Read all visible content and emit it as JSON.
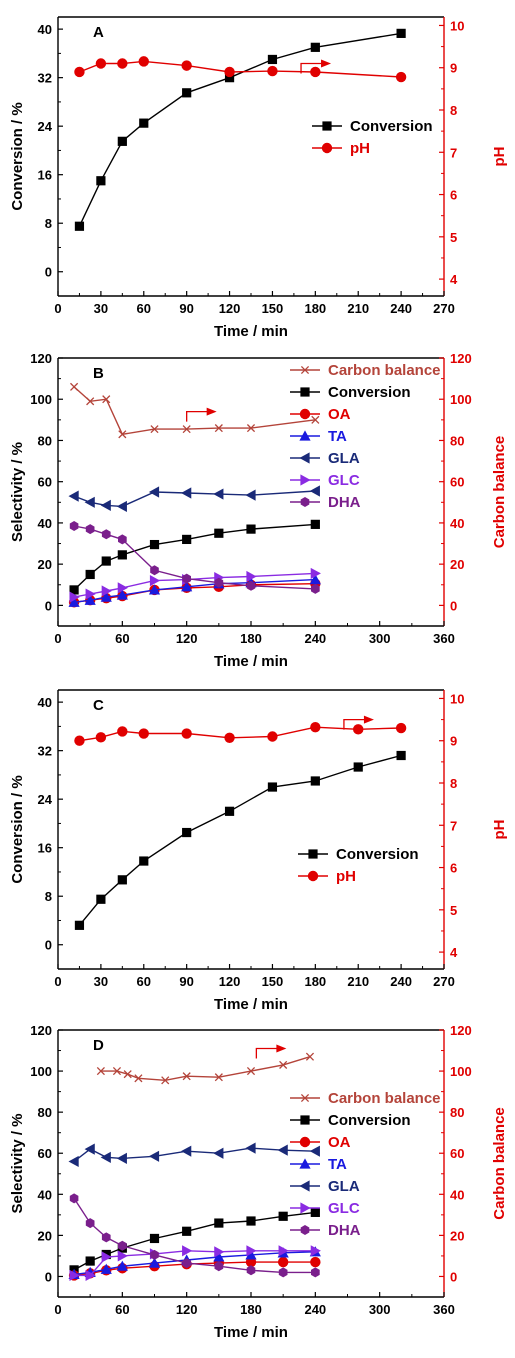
{
  "colors": {
    "black": "#000000",
    "red": "#e00000",
    "blue": "#1a1adf",
    "navy": "#1a2a78",
    "violet": "#8a2be2",
    "purple": "#7a1f8c",
    "brown": "#b4443a"
  },
  "chart_data": [
    {
      "type": "line",
      "panel": "A",
      "xlabel": "Time / min",
      "ylabel": "Conversion / %",
      "y2label": "pH",
      "xlim": [
        0,
        270
      ],
      "ylim": [
        -4,
        42
      ],
      "y2lim": [
        3.6,
        10.2
      ],
      "xticks": [
        0,
        30,
        60,
        90,
        120,
        150,
        180,
        210,
        240,
        270
      ],
      "yticks": [
        0,
        8,
        16,
        24,
        32,
        40
      ],
      "y2ticks": [
        4,
        5,
        6,
        7,
        8,
        9,
        10
      ],
      "legend_position": "center-right",
      "arrow": {
        "x": 170,
        "y2": 9.1
      },
      "series": [
        {
          "name": "Conversion",
          "axis": "left",
          "marker": "square",
          "color": "#000000",
          "x": [
            15,
            30,
            45,
            60,
            90,
            120,
            150,
            180,
            240
          ],
          "y": [
            7.5,
            15,
            21.5,
            24.5,
            29.5,
            32,
            35,
            37,
            39.3
          ]
        },
        {
          "name": "pH",
          "axis": "right",
          "marker": "circle",
          "color": "#e00000",
          "x": [
            15,
            30,
            45,
            60,
            90,
            120,
            150,
            180,
            240
          ],
          "y": [
            8.9,
            9.1,
            9.1,
            9.15,
            9.05,
            8.9,
            8.92,
            8.9,
            8.78
          ]
        }
      ]
    },
    {
      "type": "line",
      "panel": "B",
      "xlabel": "Time / min",
      "ylabel": "Selectivity / %",
      "y2label": "Carbon balance",
      "xlim": [
        0,
        360
      ],
      "ylim": [
        -10,
        120
      ],
      "y2lim": [
        -10,
        120
      ],
      "xticks": [
        0,
        60,
        120,
        180,
        240,
        300,
        360
      ],
      "yticks": [
        0,
        20,
        40,
        60,
        80,
        100,
        120
      ],
      "y2ticks": [
        0,
        20,
        40,
        60,
        80,
        100,
        120
      ],
      "legend_position": "right",
      "arrow": {
        "x": 120,
        "y2": 94
      },
      "series": [
        {
          "name": "Carbon balance",
          "axis": "right",
          "marker": "x",
          "color": "#b4443a",
          "x": [
            15,
            30,
            45,
            60,
            90,
            120,
            150,
            180,
            240
          ],
          "y": [
            106,
            99,
            100,
            83,
            85.5,
            85.5,
            86,
            86,
            90
          ]
        },
        {
          "name": "Conversion",
          "axis": "left",
          "marker": "square",
          "color": "#000000",
          "x": [
            15,
            30,
            45,
            60,
            90,
            120,
            150,
            180,
            240
          ],
          "y": [
            7.5,
            15,
            21.5,
            24.5,
            29.5,
            32,
            35,
            37,
            39.3
          ]
        },
        {
          "name": "OA",
          "axis": "left",
          "marker": "circle",
          "color": "#e00000",
          "x": [
            15,
            30,
            45,
            60,
            90,
            120,
            150,
            180,
            240
          ],
          "y": [
            1.5,
            2.5,
            3.5,
            4.5,
            7.5,
            8.5,
            9,
            10,
            10.5
          ]
        },
        {
          "name": "TA",
          "axis": "left",
          "marker": "triangle-up",
          "color": "#1a1adf",
          "x": [
            15,
            30,
            45,
            60,
            90,
            120,
            150,
            180,
            240
          ],
          "y": [
            1.5,
            2.5,
            4,
            5,
            7.5,
            9,
            10.5,
            11,
            12.5
          ]
        },
        {
          "name": "GLA",
          "axis": "left",
          "marker": "triangle-left",
          "color": "#1a2a78",
          "x": [
            15,
            30,
            45,
            60,
            90,
            120,
            150,
            180,
            240
          ],
          "y": [
            53,
            50,
            48.5,
            48,
            55,
            54.5,
            54,
            53.5,
            55.5
          ]
        },
        {
          "name": "GLC",
          "axis": "left",
          "marker": "triangle-right",
          "color": "#8a2be2",
          "x": [
            15,
            30,
            45,
            60,
            90,
            120,
            150,
            180,
            240
          ],
          "y": [
            4,
            5.5,
            7,
            8.5,
            12,
            12.5,
            13.5,
            14,
            15.5
          ]
        },
        {
          "name": "DHA",
          "axis": "left",
          "marker": "hexagon",
          "color": "#7a1f8c",
          "x": [
            15,
            30,
            45,
            60,
            90,
            120,
            150,
            180,
            240
          ],
          "y": [
            38.5,
            37,
            34.5,
            32,
            17,
            13,
            11,
            9.5,
            8
          ]
        }
      ]
    },
    {
      "type": "line",
      "panel": "C",
      "xlabel": "Time / min",
      "ylabel": "Conversion / %",
      "y2label": "pH",
      "xlim": [
        0,
        270
      ],
      "ylim": [
        -4,
        42
      ],
      "y2lim": [
        3.6,
        10.2
      ],
      "xticks": [
        0,
        30,
        60,
        90,
        120,
        150,
        180,
        210,
        240,
        270
      ],
      "yticks": [
        0,
        8,
        16,
        24,
        32,
        40
      ],
      "y2ticks": [
        4,
        5,
        6,
        7,
        8,
        9,
        10
      ],
      "legend_position": "center-right",
      "arrow": {
        "x": 200,
        "y2": 9.5
      },
      "series": [
        {
          "name": "Conversion",
          "axis": "left",
          "marker": "square",
          "color": "#000000",
          "x": [
            15,
            30,
            45,
            60,
            90,
            120,
            150,
            180,
            210,
            240
          ],
          "y": [
            3.2,
            7.5,
            10.7,
            13.8,
            18.5,
            22,
            26,
            27,
            29.3,
            31.2
          ]
        },
        {
          "name": "pH",
          "axis": "right",
          "marker": "circle",
          "color": "#e00000",
          "x": [
            15,
            30,
            45,
            60,
            90,
            120,
            150,
            180,
            210,
            240
          ],
          "y": [
            9.0,
            9.08,
            9.22,
            9.17,
            9.17,
            9.07,
            9.1,
            9.32,
            9.27,
            9.3
          ]
        }
      ]
    },
    {
      "type": "line",
      "panel": "D",
      "xlabel": "Time / min",
      "ylabel": "Selectivity / %",
      "y2label": "Carbon balance",
      "xlim": [
        0,
        360
      ],
      "ylim": [
        -10,
        120
      ],
      "y2lim": [
        -10,
        120
      ],
      "xticks": [
        0,
        60,
        120,
        180,
        240,
        300,
        360
      ],
      "yticks": [
        0,
        20,
        40,
        60,
        80,
        100,
        120
      ],
      "y2ticks": [
        0,
        20,
        40,
        60,
        80,
        100,
        120
      ],
      "legend_position": "right",
      "arrow": {
        "x": 185,
        "y2": 111
      },
      "series": [
        {
          "name": "Carbon balance",
          "axis": "right",
          "marker": "x",
          "color": "#b4443a",
          "x": [
            40,
            55,
            65,
            75,
            100,
            120,
            150,
            180,
            210,
            235
          ],
          "y": [
            100,
            100,
            98.5,
            96.5,
            95.5,
            97.5,
            97,
            100,
            103,
            107
          ]
        },
        {
          "name": "Conversion",
          "axis": "left",
          "marker": "square",
          "color": "#000000",
          "x": [
            15,
            30,
            45,
            60,
            90,
            120,
            150,
            180,
            210,
            240
          ],
          "y": [
            3.2,
            7.5,
            10.7,
            13.8,
            18.5,
            22,
            26,
            27,
            29.3,
            31.2
          ]
        },
        {
          "name": "OA",
          "axis": "left",
          "marker": "circle",
          "color": "#e00000",
          "x": [
            15,
            30,
            45,
            60,
            90,
            120,
            150,
            180,
            210,
            240
          ],
          "y": [
            0.5,
            1.5,
            3,
            4,
            5,
            6,
            6.5,
            7,
            7,
            7
          ]
        },
        {
          "name": "TA",
          "axis": "left",
          "marker": "triangle-up",
          "color": "#1a1adf",
          "x": [
            15,
            30,
            45,
            60,
            90,
            120,
            150,
            180,
            210,
            240
          ],
          "y": [
            1,
            2,
            3.5,
            5,
            6.5,
            8,
            9.5,
            10.5,
            11.5,
            12
          ]
        },
        {
          "name": "GLA",
          "axis": "left",
          "marker": "triangle-left",
          "color": "#1a2a78",
          "x": [
            15,
            30,
            45,
            60,
            90,
            120,
            150,
            180,
            210,
            240
          ],
          "y": [
            56,
            62,
            58,
            57.5,
            58.5,
            61,
            60,
            62.5,
            61.5,
            61
          ]
        },
        {
          "name": "GLC",
          "axis": "left",
          "marker": "triangle-right",
          "color": "#8a2be2",
          "x": [
            15,
            30,
            45,
            60,
            90,
            120,
            150,
            180,
            210,
            240
          ],
          "y": [
            0.5,
            0.5,
            9.5,
            10,
            11,
            12.5,
            12,
            12.5,
            12.5,
            12.5
          ]
        },
        {
          "name": "DHA",
          "axis": "left",
          "marker": "hexagon",
          "color": "#7a1f8c",
          "x": [
            15,
            30,
            45,
            60,
            90,
            120,
            150,
            180,
            210,
            240
          ],
          "y": [
            38,
            26,
            19,
            15,
            10.5,
            6.5,
            5,
            3,
            2,
            2
          ]
        }
      ]
    }
  ]
}
